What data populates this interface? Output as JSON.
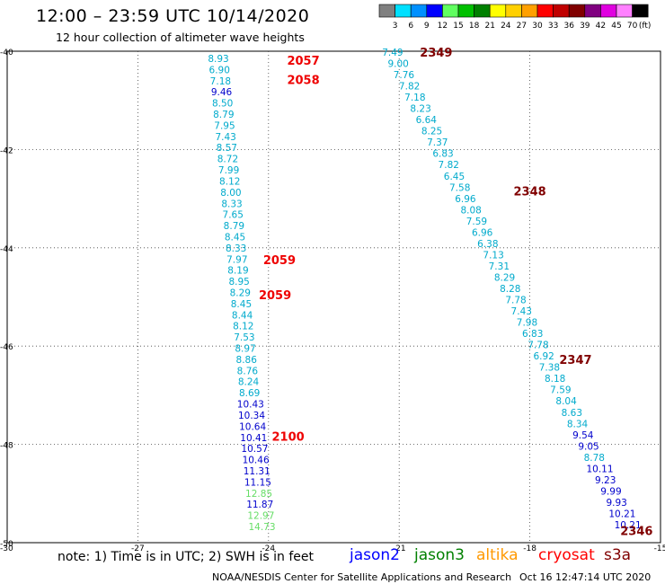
{
  "title": "12:00 – 23:59 UTC 10/14/2020",
  "subtitle": "12 hour collection of altimeter wave heights",
  "colorbar": {
    "labels": [
      "3",
      "6",
      "9",
      "12",
      "15",
      "18",
      "21",
      "24",
      "27",
      "30",
      "33",
      "36",
      "39",
      "42",
      "45",
      "70"
    ],
    "unit": "(ft)",
    "colors": [
      "#808080",
      "#00e0ff",
      "#0090ff",
      "#0000ff",
      "#60ff60",
      "#00c000",
      "#008000",
      "#ffff00",
      "#ffd000",
      "#ffa000",
      "#ff0000",
      "#c00000",
      "#800000",
      "#800080",
      "#e000e0",
      "#ff80ff",
      "#000000"
    ]
  },
  "note": "note: 1) Time is in UTC; 2) SWH is in feet",
  "legend": [
    {
      "name": "jason2",
      "color": "#0000ff"
    },
    {
      "name": "jason3",
      "color": "#008000"
    },
    {
      "name": "altika",
      "color": "#ff9900"
    },
    {
      "name": "cryosat",
      "color": "#ff0000"
    },
    {
      "name": "s3a",
      "color": "#800000"
    }
  ],
  "credit": "NOAA/NESDIS Center for Satellite Applications and Research",
  "timestamp": "Oct 16 12:47:14 UTC 2020",
  "chart_data": {
    "type": "scatter",
    "xlim": [
      -30,
      -15
    ],
    "ylim": [
      -50,
      -40
    ],
    "x_ticks": [
      "-27",
      "-24",
      "-21",
      "-18",
      "-15"
    ],
    "y_ticks": [
      "-40",
      "-42",
      "-44",
      "-46",
      "-48",
      "-50"
    ],
    "corner_labels": {
      "bottom_left": "-30"
    },
    "grid": true,
    "track_west": {
      "lon_top": -25.15,
      "lon_bottom": -24.15,
      "values": [
        {
          "v": "8.93",
          "c": "#00aacc"
        },
        {
          "v": "6.90",
          "c": "#00aacc"
        },
        {
          "v": "7.18",
          "c": "#00aacc"
        },
        {
          "v": "9.46",
          "c": "#0000cc"
        },
        {
          "v": "8.50",
          "c": "#00aacc"
        },
        {
          "v": "8.79",
          "c": "#00aacc"
        },
        {
          "v": "7.95",
          "c": "#00aacc"
        },
        {
          "v": "7.43",
          "c": "#00aacc"
        },
        {
          "v": "8.57",
          "c": "#00aacc"
        },
        {
          "v": "8.72",
          "c": "#00aacc"
        },
        {
          "v": "7.99",
          "c": "#00aacc"
        },
        {
          "v": "8.12",
          "c": "#00aacc"
        },
        {
          "v": "8.00",
          "c": "#00aacc"
        },
        {
          "v": "8.33",
          "c": "#00aacc"
        },
        {
          "v": "7.65",
          "c": "#00aacc"
        },
        {
          "v": "8.79",
          "c": "#00aacc"
        },
        {
          "v": "8.45",
          "c": "#00aacc"
        },
        {
          "v": "8.33",
          "c": "#00aacc"
        },
        {
          "v": "7.97",
          "c": "#00aacc"
        },
        {
          "v": "8.19",
          "c": "#00aacc"
        },
        {
          "v": "8.95",
          "c": "#00aacc"
        },
        {
          "v": "8.29",
          "c": "#00aacc"
        },
        {
          "v": "8.45",
          "c": "#00aacc"
        },
        {
          "v": "8.44",
          "c": "#00aacc"
        },
        {
          "v": "8.12",
          "c": "#00aacc"
        },
        {
          "v": "7.53",
          "c": "#00aacc"
        },
        {
          "v": "8.97",
          "c": "#00aacc"
        },
        {
          "v": "8.86",
          "c": "#00aacc"
        },
        {
          "v": "8.76",
          "c": "#00aacc"
        },
        {
          "v": "8.24",
          "c": "#00aacc"
        },
        {
          "v": "8.69",
          "c": "#00aacc"
        },
        {
          "v": "10.43",
          "c": "#0000cc"
        },
        {
          "v": "10.34",
          "c": "#0000cc"
        },
        {
          "v": "10.64",
          "c": "#0000cc"
        },
        {
          "v": "10.41",
          "c": "#0000cc"
        },
        {
          "v": "10.57",
          "c": "#0000cc"
        },
        {
          "v": "10.46",
          "c": "#0000cc"
        },
        {
          "v": "11.31",
          "c": "#0000cc"
        },
        {
          "v": "11.15",
          "c": "#0000cc"
        },
        {
          "v": "12.85",
          "c": "#66dd66"
        },
        {
          "v": "11.87",
          "c": "#0000cc"
        },
        {
          "v": "12.97",
          "c": "#66dd66"
        },
        {
          "v": "14.73",
          "c": "#66dd66"
        }
      ]
    },
    "track_east": {
      "lon_top": -21.15,
      "lon_bottom": -15.75,
      "values": [
        {
          "v": "7.49",
          "c": "#00aacc"
        },
        {
          "v": "9.00",
          "c": "#00aacc"
        },
        {
          "v": "7.76",
          "c": "#00aacc"
        },
        {
          "v": "7.82",
          "c": "#00aacc"
        },
        {
          "v": "7.18",
          "c": "#00aacc"
        },
        {
          "v": "8.23",
          "c": "#00aacc"
        },
        {
          "v": "6.64",
          "c": "#00aacc"
        },
        {
          "v": "8.25",
          "c": "#00aacc"
        },
        {
          "v": "7.37",
          "c": "#00aacc"
        },
        {
          "v": "6.83",
          "c": "#00aacc"
        },
        {
          "v": "7.82",
          "c": "#00aacc"
        },
        {
          "v": "6.45",
          "c": "#00aacc"
        },
        {
          "v": "7.58",
          "c": "#00aacc"
        },
        {
          "v": "6.96",
          "c": "#00aacc"
        },
        {
          "v": "8.08",
          "c": "#00aacc"
        },
        {
          "v": "7.59",
          "c": "#00aacc"
        },
        {
          "v": "6.96",
          "c": "#00aacc"
        },
        {
          "v": "6.38",
          "c": "#00aacc"
        },
        {
          "v": "7.13",
          "c": "#00aacc"
        },
        {
          "v": "7.31",
          "c": "#00aacc"
        },
        {
          "v": "8.29",
          "c": "#00aacc"
        },
        {
          "v": "8.28",
          "c": "#00aacc"
        },
        {
          "v": "7.78",
          "c": "#00aacc"
        },
        {
          "v": "7.43",
          "c": "#00aacc"
        },
        {
          "v": "7.98",
          "c": "#00aacc"
        },
        {
          "v": "6.83",
          "c": "#00aacc"
        },
        {
          "v": "7.78",
          "c": "#00aacc"
        },
        {
          "v": "6.92",
          "c": "#00aacc"
        },
        {
          "v": "7.38",
          "c": "#00aacc"
        },
        {
          "v": "8.18",
          "c": "#00aacc"
        },
        {
          "v": "7.59",
          "c": "#00aacc"
        },
        {
          "v": "8.04",
          "c": "#00aacc"
        },
        {
          "v": "8.63",
          "c": "#00aacc"
        },
        {
          "v": "8.34",
          "c": "#00aacc"
        },
        {
          "v": "9.54",
          "c": "#0000cc"
        },
        {
          "v": "9.05",
          "c": "#0000cc"
        },
        {
          "v": "8.78",
          "c": "#00aacc"
        },
        {
          "v": "10.11",
          "c": "#0000cc"
        },
        {
          "v": "9.23",
          "c": "#0000cc"
        },
        {
          "v": "9.99",
          "c": "#0000cc"
        },
        {
          "v": "9.93",
          "c": "#0000cc"
        },
        {
          "v": "10.21",
          "c": "#0000cc"
        },
        {
          "v": "10.21",
          "c": "#0000cc"
        }
      ]
    },
    "time_labels": [
      {
        "text": "2057",
        "lon": -23.2,
        "lat": -40.18,
        "c": "#ee0000"
      },
      {
        "text": "2058",
        "lon": -23.2,
        "lat": -40.58,
        "c": "#ee0000"
      },
      {
        "text": "2059",
        "lon": -23.75,
        "lat": -44.24,
        "c": "#ee0000"
      },
      {
        "text": "2059",
        "lon": -23.85,
        "lat": -44.95,
        "c": "#ee0000"
      },
      {
        "text": "2100",
        "lon": -23.55,
        "lat": -47.83,
        "c": "#ee0000"
      },
      {
        "text": "2349",
        "lon": -20.15,
        "lat": -40.02,
        "c": "#800000"
      },
      {
        "text": "2348",
        "lon": -18.0,
        "lat": -42.84,
        "c": "#800000"
      },
      {
        "text": "2347",
        "lon": -16.95,
        "lat": -46.27,
        "c": "#800000"
      },
      {
        "text": "2346",
        "lon": -15.55,
        "lat": -49.75,
        "c": "#800000"
      }
    ]
  }
}
